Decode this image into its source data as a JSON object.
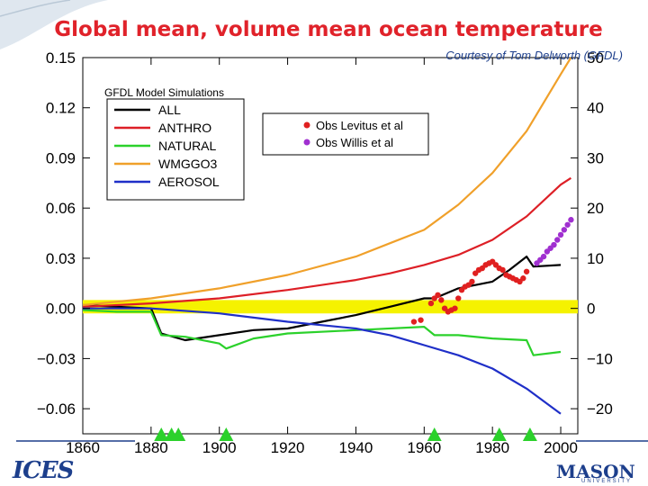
{
  "slide": {
    "title": "Global mean, volume mean ocean temperature",
    "credit": "Courtesy of Tom Delworth (GFDL)",
    "logo_left_text": "ICES",
    "logo_right_text": "MASON",
    "logo_right_sub": "UNIVERSITY"
  },
  "colors": {
    "title": "#e0222a",
    "ALL": "#000000",
    "ANTHRO": "#dd1f26",
    "NATURAL": "#2bd12b",
    "WMGGO3": "#f0a02a",
    "AEROSOL": "#1f2fc8",
    "obs_levitus": "#e02020",
    "obs_willis": "#a030d0",
    "zero_band": "#f5f200",
    "triangles": "#2bd12b"
  },
  "chart_data": {
    "type": "line",
    "title": "",
    "panel_label": "GFDL Model Simulations",
    "xlabel": "",
    "ylabel": "",
    "xlim": [
      1860,
      2005
    ],
    "ylim": [
      -0.075,
      0.15
    ],
    "x_ticks": [
      1860,
      1880,
      1900,
      1920,
      1940,
      1960,
      1980,
      2000
    ],
    "y_ticks": [
      -0.06,
      -0.03,
      0.0,
      0.03,
      0.06,
      0.09,
      0.12,
      0.15
    ],
    "y_tick_labels": [
      "−0.06",
      "−0.03",
      "0.00",
      "0.03",
      "0.06",
      "0.09",
      "0.12",
      "0.15"
    ],
    "y2_ticks": [
      -20,
      -10,
      0,
      10,
      20,
      30,
      40,
      50
    ],
    "y2_tick_labels": [
      "−20",
      "−10",
      "0",
      "10",
      "20",
      "30",
      "40",
      "50"
    ],
    "zero_band": [
      -0.003,
      0.005
    ],
    "legend_models_placement": "top-left",
    "legend_obs_placement": "top-center",
    "series": [
      {
        "name": "ALL",
        "x": [
          1860,
          1870,
          1880,
          1883,
          1890,
          1900,
          1910,
          1920,
          1930,
          1940,
          1950,
          1960,
          1963,
          1970,
          1980,
          1985,
          1990,
          1992,
          2000
        ],
        "y": [
          0.002,
          0.001,
          0.0,
          -0.015,
          -0.019,
          -0.016,
          -0.013,
          -0.012,
          -0.008,
          -0.004,
          0.001,
          0.006,
          0.006,
          0.012,
          0.016,
          0.023,
          0.031,
          0.025,
          0.026
        ]
      },
      {
        "name": "ANTHRO",
        "x": [
          1860,
          1880,
          1900,
          1920,
          1940,
          1950,
          1960,
          1970,
          1980,
          1990,
          2000,
          2003
        ],
        "y": [
          0.001,
          0.003,
          0.006,
          0.011,
          0.017,
          0.021,
          0.026,
          0.032,
          0.041,
          0.055,
          0.074,
          0.078
        ]
      },
      {
        "name": "NATURAL",
        "x": [
          1860,
          1870,
          1880,
          1883,
          1890,
          1900,
          1902,
          1910,
          1920,
          1940,
          1960,
          1963,
          1970,
          1980,
          1990,
          1992,
          2000
        ],
        "y": [
          -0.001,
          -0.002,
          -0.002,
          -0.016,
          -0.017,
          -0.021,
          -0.024,
          -0.018,
          -0.015,
          -0.013,
          -0.011,
          -0.016,
          -0.016,
          -0.018,
          -0.019,
          -0.028,
          -0.026
        ]
      },
      {
        "name": "WMGGO3",
        "x": [
          1860,
          1880,
          1900,
          1920,
          1940,
          1950,
          1960,
          1970,
          1980,
          1990,
          2000,
          2003
        ],
        "y": [
          0.002,
          0.006,
          0.012,
          0.02,
          0.031,
          0.039,
          0.047,
          0.062,
          0.081,
          0.106,
          0.14,
          0.15
        ]
      },
      {
        "name": "AEROSOL",
        "x": [
          1860,
          1880,
          1900,
          1920,
          1940,
          1950,
          1960,
          1970,
          1980,
          1990,
          2000
        ],
        "y": [
          0.0,
          0.0,
          -0.003,
          -0.008,
          -0.012,
          -0.016,
          -0.022,
          -0.028,
          -0.036,
          -0.048,
          -0.063
        ]
      }
    ],
    "observations": [
      {
        "name": "Obs Levitus et al",
        "x": [
          1957,
          1959,
          1962,
          1963,
          1964,
          1965,
          1966,
          1967,
          1968,
          1969,
          1970,
          1971,
          1972,
          1973,
          1974,
          1975,
          1976,
          1977,
          1978,
          1979,
          1980,
          1981,
          1982,
          1983,
          1984,
          1985,
          1986,
          1987,
          1988,
          1989,
          1990
        ],
        "y": [
          -0.008,
          -0.007,
          0.003,
          0.006,
          0.008,
          0.005,
          0.0,
          -0.002,
          -0.001,
          0.0,
          0.006,
          0.011,
          0.013,
          0.014,
          0.016,
          0.021,
          0.023,
          0.024,
          0.026,
          0.027,
          0.028,
          0.026,
          0.024,
          0.023,
          0.02,
          0.019,
          0.018,
          0.017,
          0.016,
          0.018,
          0.022
        ]
      },
      {
        "name": "Obs Willis et al",
        "x": [
          1993,
          1994,
          1995,
          1996,
          1997,
          1998,
          1999,
          2000,
          2001,
          2002,
          2003
        ],
        "y": [
          0.027,
          0.029,
          0.031,
          0.034,
          0.036,
          0.038,
          0.041,
          0.044,
          0.047,
          0.05,
          0.053
        ]
      }
    ],
    "volcanic_eruption_years": [
      1883,
      1886,
      1888,
      1902,
      1963,
      1982,
      1991
    ]
  }
}
